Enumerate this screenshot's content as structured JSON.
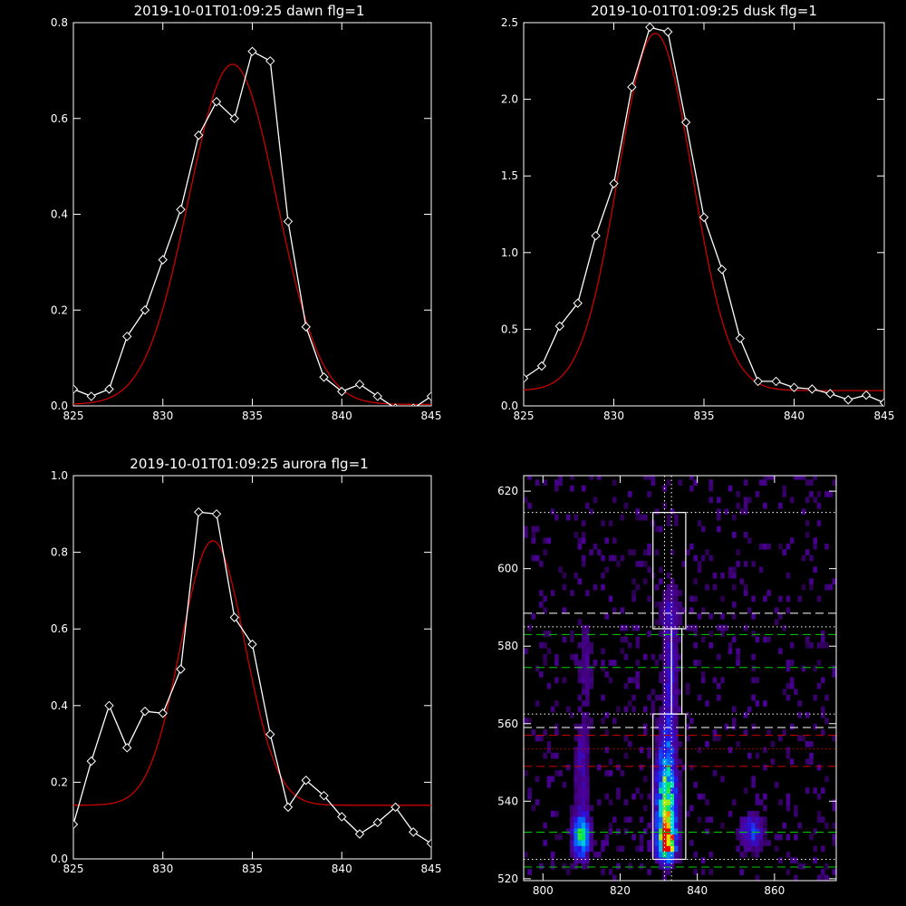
{
  "chart_data": [
    {
      "type": "line",
      "title": "2019-10-01T01:09:25 dawn flg=1",
      "xlim": [
        825,
        845
      ],
      "ylim": [
        0,
        0.8
      ],
      "xticks": [
        825,
        830,
        835,
        840,
        845
      ],
      "xtick_labels": [
        "825",
        "830",
        "835",
        "840",
        "845"
      ],
      "yticks": [
        0,
        0.2,
        0.4,
        0.6,
        0.8
      ],
      "ytick_labels": [
        "0.0",
        "0.2",
        "0.4",
        "0.6",
        "0.8"
      ],
      "series": [
        {
          "kind": "data",
          "color": "#ffffff",
          "x": [
            825,
            826,
            827,
            828,
            829,
            830,
            831,
            832,
            833,
            834,
            835,
            836,
            837,
            838,
            839,
            840,
            841,
            842,
            843,
            844,
            845
          ],
          "y": [
            0.035,
            0.02,
            0.035,
            0.145,
            0.2,
            0.305,
            0.41,
            0.565,
            0.635,
            0.6,
            0.74,
            0.72,
            0.385,
            0.165,
            0.06,
            0.03,
            0.045,
            0.02,
            -0.005,
            -0.005,
            0.02
          ]
        },
        {
          "kind": "fit",
          "color": "#cc0000",
          "amp": 0.71,
          "center": 833.9,
          "sigma": 2.45,
          "offset": 0.003
        }
      ]
    },
    {
      "type": "line",
      "title": "2019-10-01T01:09:25 dusk flg=1",
      "xlim": [
        825,
        845
      ],
      "ylim": [
        0,
        2.5
      ],
      "xticks": [
        825,
        830,
        835,
        840,
        845
      ],
      "xtick_labels": [
        "825",
        "830",
        "835",
        "840",
        "845"
      ],
      "yticks": [
        0,
        0.5,
        1.0,
        1.5,
        2.0,
        2.5
      ],
      "ytick_labels": [
        "0.0",
        "0.5",
        "1.0",
        "1.5",
        "2.0",
        "2.5"
      ],
      "series": [
        {
          "kind": "data",
          "color": "#ffffff",
          "x": [
            825,
            826,
            827,
            828,
            829,
            830,
            831,
            832,
            833,
            834,
            835,
            836,
            837,
            838,
            839,
            840,
            841,
            842,
            843,
            844,
            845
          ],
          "y": [
            0.18,
            0.26,
            0.52,
            0.67,
            1.11,
            1.45,
            2.08,
            2.47,
            2.44,
            1.85,
            1.23,
            0.89,
            0.44,
            0.16,
            0.16,
            0.12,
            0.11,
            0.08,
            0.04,
            0.07,
            0.02
          ]
        },
        {
          "kind": "fit",
          "color": "#cc0000",
          "amp": 2.33,
          "center": 832.3,
          "sigma": 2.05,
          "offset": 0.1
        }
      ]
    },
    {
      "type": "line",
      "title": "2019-10-01T01:09:25 aurora flg=1",
      "xlim": [
        825,
        845
      ],
      "ylim": [
        0,
        1.0
      ],
      "xticks": [
        825,
        830,
        835,
        840,
        845
      ],
      "xtick_labels": [
        "825",
        "830",
        "835",
        "840",
        "845"
      ],
      "yticks": [
        0,
        0.2,
        0.4,
        0.6,
        0.8,
        1.0
      ],
      "ytick_labels": [
        "0.0",
        "0.2",
        "0.4",
        "0.6",
        "0.8",
        "1.0"
      ],
      "series": [
        {
          "kind": "data",
          "color": "#ffffff",
          "x": [
            825,
            826,
            827,
            828,
            829,
            830,
            831,
            832,
            833,
            834,
            835,
            836,
            837,
            838,
            839,
            840,
            841,
            842,
            843,
            844,
            845
          ],
          "y": [
            0.09,
            0.255,
            0.4,
            0.29,
            0.385,
            0.38,
            0.495,
            0.905,
            0.9,
            0.63,
            0.56,
            0.325,
            0.135,
            0.205,
            0.165,
            0.11,
            0.065,
            0.095,
            0.135,
            0.07,
            0.04
          ]
        },
        {
          "kind": "fit",
          "color": "#cc0000",
          "amp": 0.69,
          "center": 832.8,
          "sigma": 1.8,
          "offset": 0.14
        }
      ]
    },
    {
      "type": "heatmap",
      "xlim": [
        795,
        876
      ],
      "ylim": [
        519.5,
        624
      ],
      "xticks": [
        800,
        820,
        840,
        860
      ],
      "xtick_labels": [
        "800",
        "820",
        "840",
        "860"
      ],
      "yticks": [
        520,
        540,
        560,
        580,
        600,
        620
      ],
      "ytick_labels": [
        "520",
        "540",
        "560",
        "580",
        "600",
        "620"
      ],
      "colormap": "rainbow",
      "blobs": [
        {
          "x": 832,
          "y": 530,
          "sx": 1.6,
          "sy": 3.5,
          "v": 1.0
        },
        {
          "x": 832,
          "y": 540,
          "sx": 1.8,
          "sy": 6.0,
          "v": 0.55
        },
        {
          "x": 832,
          "y": 552,
          "sx": 1.6,
          "sy": 7.0,
          "v": 0.3
        },
        {
          "x": 833,
          "y": 572,
          "sx": 1.5,
          "sy": 10.0,
          "v": 0.2
        },
        {
          "x": 833,
          "y": 590,
          "sx": 2.0,
          "sy": 6.0,
          "v": 0.12
        },
        {
          "x": 810,
          "y": 531,
          "sx": 1.6,
          "sy": 4.0,
          "v": 0.5
        },
        {
          "x": 810,
          "y": 548,
          "sx": 1.5,
          "sy": 9.0,
          "v": 0.15
        },
        {
          "x": 811,
          "y": 575,
          "sx": 1.5,
          "sy": 10.0,
          "v": 0.1
        },
        {
          "x": 854,
          "y": 532,
          "sx": 2.2,
          "sy": 3.0,
          "v": 0.3
        }
      ],
      "rects": [
        {
          "x0": 828.5,
          "x1": 837.0,
          "y0": 584.5,
          "y1": 614.5,
          "color": "#ffffff"
        },
        {
          "x0": 833.3,
          "x1": 836.0,
          "y0": 562.5,
          "y1": 584.5,
          "color": "#ffffff"
        },
        {
          "x0": 828.5,
          "x1": 837.0,
          "y0": 525.0,
          "y1": 562.5,
          "color": "#ffffff"
        }
      ],
      "hlines": [
        {
          "y": 614.5,
          "color": "#ffffff",
          "style": "dotted"
        },
        {
          "y": 588.5,
          "color": "#ffffff",
          "style": "dashed"
        },
        {
          "y": 585.0,
          "color": "#ffffff",
          "style": "dotted"
        },
        {
          "y": 583.0,
          "color": "#00cc00",
          "style": "dashed"
        },
        {
          "y": 574.5,
          "color": "#00cc00",
          "style": "dashed"
        },
        {
          "y": 562.5,
          "color": "#ffffff",
          "style": "dotted"
        },
        {
          "y": 559.0,
          "color": "#ffffff",
          "style": "dashed"
        },
        {
          "y": 557.0,
          "color": "#cc0000",
          "style": "dashed"
        },
        {
          "y": 553.5,
          "color": "#cc0000",
          "style": "dotted"
        },
        {
          "y": 549.0,
          "color": "#cc0000",
          "style": "dashed"
        },
        {
          "y": 532.0,
          "color": "#00cc00",
          "style": "dashed"
        },
        {
          "y": 525.0,
          "color": "#ffffff",
          "style": "dotted"
        },
        {
          "y": 523.0,
          "color": "#00cc00",
          "style": "dashed"
        }
      ],
      "vlines": [
        {
          "x": 831.5,
          "color": "#ffffff",
          "style": "dotted"
        },
        {
          "x": 833.3,
          "color": "#ffffff",
          "style": "dotted"
        }
      ]
    }
  ]
}
